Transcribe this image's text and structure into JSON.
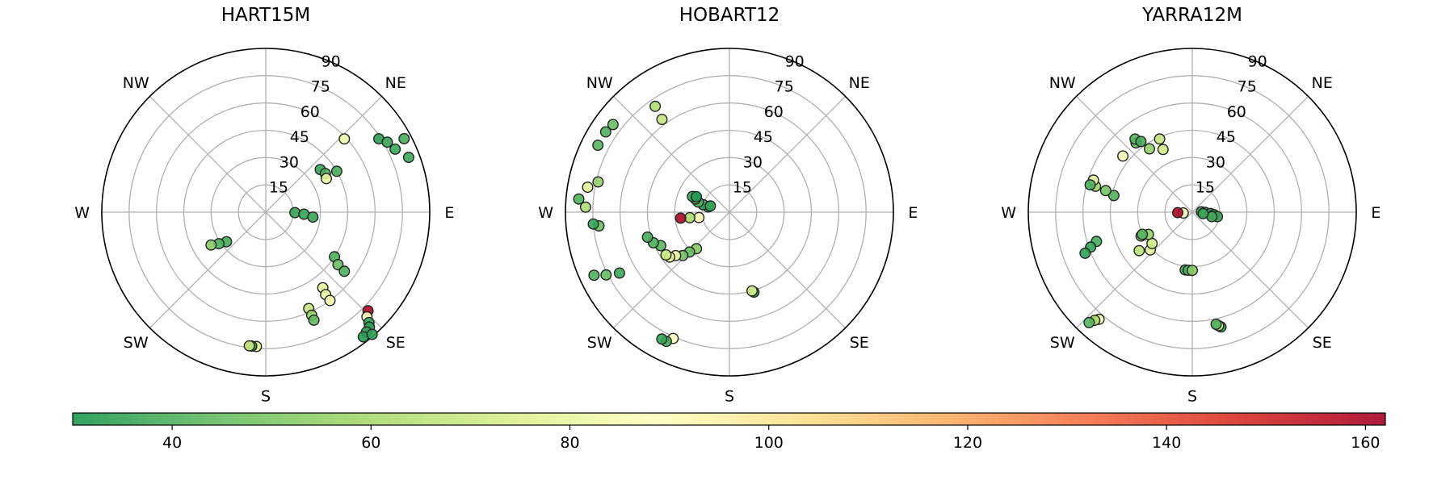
{
  "chart_data": {
    "type": "scatter",
    "projection": "polar",
    "r_ticks": [
      15,
      30,
      45,
      60,
      75,
      90
    ],
    "r_tick_labels": [
      "15",
      "30",
      "45",
      "60",
      "75",
      "90"
    ],
    "r_range": [
      0,
      90
    ],
    "direction_labels": [
      {
        "label": "E",
        "azimuth": 90
      },
      {
        "label": "NE",
        "azimuth": 45
      },
      {
        "label": "NW",
        "azimuth": 315
      },
      {
        "label": "W",
        "azimuth": 270
      },
      {
        "label": "SW",
        "azimuth": 225
      },
      {
        "label": "S",
        "azimuth": 180
      },
      {
        "label": "SE",
        "azimuth": 135
      }
    ],
    "grid": true,
    "colormap": "RdYlGn_r",
    "colorbar": {
      "range": [
        30,
        162
      ],
      "ticks": [
        40,
        60,
        80,
        100,
        120,
        140,
        160
      ],
      "tick_labels": [
        "40",
        "60",
        "80",
        "100",
        "120",
        "140",
        "160"
      ],
      "colors": [
        "#1a9850",
        "#66bd63",
        "#a6d96a",
        "#d9ef8b",
        "#ffffbf",
        "#fee08b",
        "#fdae61",
        "#f46d43",
        "#d73027",
        "#a50026"
      ]
    },
    "panels": [
      {
        "title": "HART15M",
        "points": [
          {
            "az": 91,
            "r": 16,
            "c": 35
          },
          {
            "az": 93,
            "r": 21,
            "c": 35
          },
          {
            "az": 96,
            "r": 26,
            "c": 35
          },
          {
            "az": 52,
            "r": 38,
            "c": 35
          },
          {
            "az": 57,
            "r": 39,
            "c": 40
          },
          {
            "az": 60,
            "r": 45,
            "c": 38
          },
          {
            "az": 61,
            "r": 38,
            "c": 80
          },
          {
            "az": 47,
            "r": 59,
            "c": 82
          },
          {
            "az": 57,
            "r": 74,
            "c": 33
          },
          {
            "az": 60,
            "r": 77,
            "c": 35
          },
          {
            "az": 64,
            "r": 79,
            "c": 36
          },
          {
            "az": 62,
            "r": 86,
            "c": 38
          },
          {
            "az": 69,
            "r": 84,
            "c": 36
          },
          {
            "az": 123,
            "r": 45,
            "c": 40
          },
          {
            "az": 126,
            "r": 49,
            "c": 45
          },
          {
            "az": 127,
            "r": 54,
            "c": 40
          },
          {
            "az": 143,
            "r": 52,
            "c": 78
          },
          {
            "az": 144,
            "r": 56,
            "c": 82
          },
          {
            "az": 144,
            "r": 60,
            "c": 84
          },
          {
            "az": 156,
            "r": 58,
            "c": 68
          },
          {
            "az": 156,
            "r": 62,
            "c": 57
          },
          {
            "az": 156,
            "r": 65,
            "c": 44
          },
          {
            "az": 134,
            "r": 78,
            "c": 160
          },
          {
            "az": 136,
            "r": 80,
            "c": 90
          },
          {
            "az": 137,
            "r": 83,
            "c": 35
          },
          {
            "az": 138,
            "r": 85,
            "c": 33
          },
          {
            "az": 140,
            "r": 86,
            "c": 35
          },
          {
            "az": 142,
            "r": 87,
            "c": 32
          },
          {
            "az": 139,
            "r": 89,
            "c": 34
          },
          {
            "az": 233,
            "r": 27,
            "c": 38
          },
          {
            "az": 236,
            "r": 31,
            "c": 40
          },
          {
            "az": 239,
            "r": 35,
            "c": 52
          },
          {
            "az": 184,
            "r": 74,
            "c": 75
          },
          {
            "az": 186,
            "r": 74,
            "c": 30
          },
          {
            "az": 187,
            "r": 74,
            "c": 70
          }
        ]
      },
      {
        "title": "HOBART12",
        "points": [
          {
            "az": 284,
            "r": 12,
            "c": 30
          },
          {
            "az": 286,
            "r": 15,
            "c": 35
          },
          {
            "az": 288,
            "r": 18,
            "c": 40
          },
          {
            "az": 291,
            "r": 20,
            "c": 38
          },
          {
            "az": 293,
            "r": 22,
            "c": 35
          },
          {
            "az": 295,
            "r": 20,
            "c": 32
          },
          {
            "az": 288,
            "r": 11,
            "c": 35
          },
          {
            "az": 260,
            "r": 17,
            "c": 90
          },
          {
            "az": 262,
            "r": 22,
            "c": 60
          },
          {
            "az": 263,
            "r": 27,
            "c": 160
          },
          {
            "az": 222,
            "r": 27,
            "c": 52
          },
          {
            "az": 225,
            "r": 31,
            "c": 45
          },
          {
            "az": 227,
            "r": 35,
            "c": 48
          },
          {
            "az": 231,
            "r": 38,
            "c": 82
          },
          {
            "az": 233,
            "r": 41,
            "c": 78
          },
          {
            "az": 236,
            "r": 42,
            "c": 70
          },
          {
            "az": 244,
            "r": 42,
            "c": 42
          },
          {
            "az": 248,
            "r": 45,
            "c": 40
          },
          {
            "az": 253,
            "r": 47,
            "c": 38
          },
          {
            "az": 264,
            "r": 72,
            "c": 45
          },
          {
            "az": 265,
            "r": 75,
            "c": 35
          },
          {
            "az": 272,
            "r": 79,
            "c": 62
          },
          {
            "az": 275,
            "r": 83,
            "c": 40
          },
          {
            "az": 280,
            "r": 79,
            "c": 78
          },
          {
            "az": 283,
            "r": 74,
            "c": 55
          },
          {
            "az": 297,
            "r": 81,
            "c": 42
          },
          {
            "az": 303,
            "r": 81,
            "c": 40
          },
          {
            "az": 307,
            "r": 80,
            "c": 45
          },
          {
            "az": 325,
            "r": 71,
            "c": 62
          },
          {
            "az": 324,
            "r": 63,
            "c": 68
          },
          {
            "az": 245,
            "r": 82,
            "c": 40
          },
          {
            "az": 243,
            "r": 76,
            "c": 45
          },
          {
            "az": 241,
            "r": 69,
            "c": 36
          },
          {
            "az": 204,
            "r": 76,
            "c": 88
          },
          {
            "az": 206,
            "r": 79,
            "c": 38
          },
          {
            "az": 208,
            "r": 79,
            "c": 35
          },
          {
            "az": 163,
            "r": 46,
            "c": 30
          },
          {
            "az": 164,
            "r": 45,
            "c": 75
          }
        ]
      },
      {
        "title": "YARRA12M",
        "points": [
          {
            "az": 88,
            "r": 5,
            "c": 35
          },
          {
            "az": 91,
            "r": 7,
            "c": 36
          },
          {
            "az": 94,
            "r": 10,
            "c": 32
          },
          {
            "az": 97,
            "r": 12,
            "c": 34
          },
          {
            "az": 100,
            "r": 14,
            "c": 35
          },
          {
            "az": 103,
            "r": 11,
            "c": 38
          },
          {
            "az": 98,
            "r": 6,
            "c": 36
          },
          {
            "az": 265,
            "r": 5,
            "c": 90
          },
          {
            "az": 268,
            "r": 8,
            "c": 160
          },
          {
            "az": 187,
            "r": 32,
            "c": 35
          },
          {
            "az": 184,
            "r": 32,
            "c": 40
          },
          {
            "az": 180,
            "r": 32,
            "c": 52
          },
          {
            "az": 228,
            "r": 31,
            "c": 78
          },
          {
            "az": 232,
            "r": 28,
            "c": 72
          },
          {
            "az": 234,
            "r": 36,
            "c": 65
          },
          {
            "az": 243,
            "r": 27,
            "c": 55
          },
          {
            "az": 245,
            "r": 31,
            "c": 52
          },
          {
            "az": 246,
            "r": 30,
            "c": 42
          },
          {
            "az": 253,
            "r": 55,
            "c": 38
          },
          {
            "az": 251,
            "r": 59,
            "c": 35
          },
          {
            "az": 249,
            "r": 63,
            "c": 34
          },
          {
            "az": 282,
            "r": 44,
            "c": 40
          },
          {
            "az": 284,
            "r": 49,
            "c": 48
          },
          {
            "az": 285,
            "r": 55,
            "c": 58
          },
          {
            "az": 288,
            "r": 57,
            "c": 82
          },
          {
            "az": 285,
            "r": 58,
            "c": 40
          },
          {
            "az": 309,
            "r": 49,
            "c": 85
          },
          {
            "az": 321,
            "r": 49,
            "c": 45
          },
          {
            "az": 322,
            "r": 51,
            "c": 42
          },
          {
            "az": 324,
            "r": 48,
            "c": 38
          },
          {
            "az": 326,
            "r": 42,
            "c": 55
          },
          {
            "az": 336,
            "r": 44,
            "c": 68
          },
          {
            "az": 335,
            "r": 38,
            "c": 72
          },
          {
            "az": 221,
            "r": 78,
            "c": 85
          },
          {
            "az": 222,
            "r": 80,
            "c": 60
          },
          {
            "az": 223,
            "r": 83,
            "c": 42
          },
          {
            "az": 166,
            "r": 65,
            "c": 30
          },
          {
            "az": 167,
            "r": 64,
            "c": 75
          },
          {
            "az": 168,
            "r": 63,
            "c": 40
          }
        ]
      }
    ]
  }
}
